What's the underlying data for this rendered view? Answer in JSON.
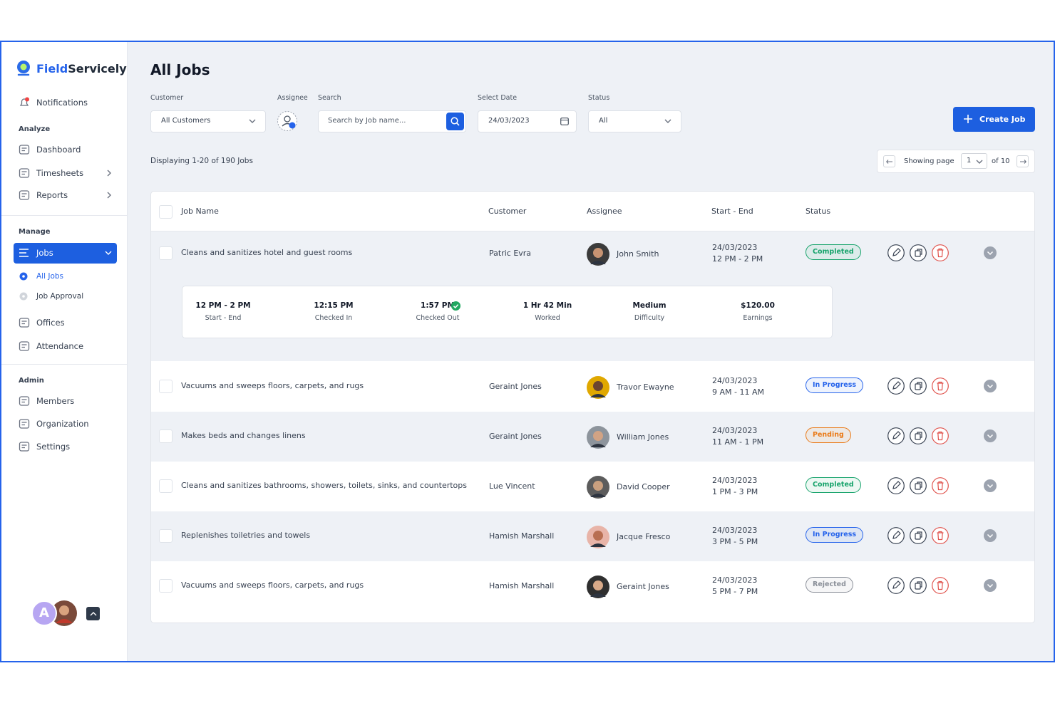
{
  "brand": {
    "first": "Field",
    "second": "Servicely"
  },
  "sidebar": {
    "notifications": "Notifications",
    "analyze": {
      "title": "Analyze",
      "items": [
        "Dashboard",
        "Timesheets",
        "Reports"
      ]
    },
    "manage": {
      "title": "Manage",
      "items": [
        "Jobs",
        "Offices",
        "Attendance"
      ],
      "jobs_subitems": [
        "All Jobs",
        "Job Approval"
      ]
    },
    "admin": {
      "title": "Admin",
      "items": [
        "Members",
        "Organization",
        "Settings"
      ]
    },
    "user_initial": "A"
  },
  "header": {
    "title": "All Jobs",
    "create_button": "Create Job"
  },
  "filters": {
    "customer": {
      "label": "Customer",
      "value": "All Customers"
    },
    "assignee": {
      "label": "Assignee"
    },
    "search": {
      "label": "Search",
      "placeholder": "Search by Job name..."
    },
    "date": {
      "label": "Select Date",
      "value": "24/03/2023"
    },
    "status": {
      "label": "Status",
      "value": "All"
    }
  },
  "summary": "Displaying 1-20 of 190 Jobs",
  "pagination": {
    "prefix": "Showing page",
    "page": "1",
    "suffix": "of 10"
  },
  "table": {
    "columns": [
      "Job Name",
      "Customer",
      "Assignee",
      "Start - End",
      "Status"
    ],
    "rows": [
      {
        "job": "Cleans and sanitizes hotel and guest rooms",
        "customer": "Patric Evra",
        "assignee": "John Smith",
        "date": "24/03/2023",
        "time": "12 PM - 2 PM",
        "status": "Completed",
        "status_color": "#16a36b"
      },
      {
        "job": "Vacuums and sweeps floors, carpets, and rugs",
        "customer": "Geraint Jones",
        "assignee": "Travor Ewayne",
        "date": "24/03/2023",
        "time": "9 AM - 11 AM",
        "status": "In Progress",
        "status_color": "#2563eb"
      },
      {
        "job": "Makes beds and changes linens",
        "customer": "Geraint Jones",
        "assignee": "William Jones",
        "date": "24/03/2023",
        "time": "11 AM - 1 PM",
        "status": "Pending",
        "status_color": "#ea7a17"
      },
      {
        "job": "Cleans and sanitizes bathrooms, showers, toilets, sinks, and countertops",
        "customer": "Lue Vincent",
        "assignee": "David Cooper",
        "date": "24/03/2023",
        "time": "1 PM - 3 PM",
        "status": "Completed",
        "status_color": "#16a36b"
      },
      {
        "job": "Replenishes toiletries and towels",
        "customer": "Hamish Marshall",
        "assignee": "Jacque Fresco",
        "date": "24/03/2023",
        "time": "3 PM - 5 PM",
        "status": "In Progress",
        "status_color": "#2563eb"
      },
      {
        "job": "Vacuums and sweeps floors, carpets, and rugs",
        "customer": "Hamish Marshall",
        "assignee": "Geraint Jones",
        "date": "24/03/2023",
        "time": "5 PM - 7 PM",
        "status": "Rejected",
        "status_color": "#8a8f98"
      }
    ],
    "detail": [
      {
        "value": "12 PM - 2 PM",
        "label": "Start - End"
      },
      {
        "value": "12:15 PM",
        "label": "Checked In"
      },
      {
        "value": "1:57 PM",
        "label": "Checked Out"
      },
      {
        "value": "1 Hr 42 Min",
        "label": "Worked"
      },
      {
        "value": "Medium",
        "label": "Difficulty"
      },
      {
        "value": "$120.00",
        "label": "Earnings"
      }
    ]
  }
}
